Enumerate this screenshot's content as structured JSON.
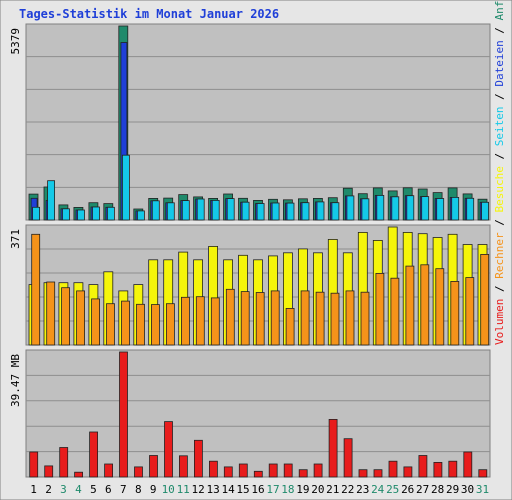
{
  "chart_data": {
    "type": "bar",
    "title": "Tages-Statistik im Monat Januar 2026",
    "colors": {
      "anfragen": "#1f8a6b",
      "dateien": "#1f3fd8",
      "seiten": "#14c9e8",
      "besuche": "#f5f50a",
      "rechner": "#f5931a",
      "volumen": "#e81c1c",
      "title": "#1f3fd8",
      "plot_bg": "#c0c0c0",
      "frame_bg": "#e6e6e6",
      "weekend": "#1f8a6b",
      "weekday": "#000000"
    },
    "categories": [
      "1",
      "2",
      "3",
      "4",
      "5",
      "6",
      "7",
      "8",
      "9",
      "10",
      "11",
      "12",
      "13",
      "14",
      "15",
      "16",
      "17",
      "18",
      "19",
      "20",
      "21",
      "22",
      "23",
      "24",
      "25",
      "26",
      "27",
      "28",
      "29",
      "30",
      "31"
    ],
    "weekend_days": [
      "3",
      "4",
      "10",
      "11",
      "17",
      "18",
      "24",
      "25",
      "31"
    ],
    "panels": [
      {
        "id": "hits",
        "ymax": 5379,
        "ymax_label": "5379",
        "series": [
          {
            "name": "Anfragen",
            "values": [
              719,
              915,
              420,
              350,
              481,
              455,
              5379,
              305,
              598,
              607,
              705,
              640,
              600,
              720,
              602,
              543,
              575,
              560,
              588,
              598,
              617,
              882,
              730,
              890,
              807,
              893,
              860,
              759,
              890,
              725,
              577
            ]
          },
          {
            "name": "Dateien",
            "values": [
              601,
              540,
              311,
              276,
              361,
              351,
              4922,
              253,
              531,
              477,
              538,
              582,
              543,
              594,
              493,
              457,
              471,
              468,
              480,
              502,
              481,
              669,
              589,
              681,
              642,
              675,
              648,
              596,
              628,
              602,
              491
            ]
          },
          {
            "name": "Seiten",
            "values": [
              352,
              1090,
              311,
              276,
              361,
              351,
              1797,
              253,
              531,
              477,
              538,
              582,
              543,
              594,
              493,
              457,
              471,
              468,
              480,
              502,
              481,
              669,
              589,
              681,
              642,
              675,
              648,
              596,
              628,
              602,
              491
            ]
          }
        ]
      },
      {
        "id": "visits",
        "ymax": 371,
        "ymax_label": "371",
        "series": [
          {
            "name": "Besuche",
            "values": [
              190,
              196,
              196,
              196,
              190,
              230,
              170,
              190,
              268,
              268,
              292,
              268,
              310,
              268,
              282,
              268,
              280,
              290,
              302,
              290,
              332,
              290,
              354,
              329,
              371,
              354,
              350,
              338,
              348,
              316,
              316
            ]
          },
          {
            "name": "Rechner",
            "values": [
              348,
              198,
              180,
              170,
              145,
              130,
              138,
              128,
              127,
              130,
              150,
              152,
              148,
              175,
              168,
              165,
              170,
              115,
              170,
              166,
              163,
              170,
              166,
              225,
              210,
              248,
              252,
              240,
              200,
              212,
              285
            ]
          }
        ]
      },
      {
        "id": "volume",
        "ymax": 39.47,
        "ymax_label": "39.47 MB",
        "series": [
          {
            "name": "Volumen",
            "values": [
              7.9,
              3.5,
              9.3,
              1.5,
              14.2,
              4.1,
              39.47,
              3.2,
              6.8,
              17.5,
              6.7,
              11.6,
              5.0,
              3.2,
              4.1,
              1.8,
              4.1,
              4.1,
              2.3,
              4.1,
              18.2,
              12.1,
              2.3,
              2.3,
              5.0,
              3.2,
              6.8,
              4.6,
              5.0,
              7.9,
              2.3
            ]
          }
        ]
      }
    ],
    "right_labels": [
      {
        "text": "Anfragen",
        "key": "anfragen"
      },
      {
        "text": "Dateien",
        "key": "dateien"
      },
      {
        "text": "Seiten",
        "key": "seiten"
      },
      {
        "text": "Besuche",
        "key": "besuche"
      },
      {
        "text": "Rechner",
        "key": "rechner"
      },
      {
        "text": "Volumen",
        "key": "volumen"
      }
    ],
    "separator": "/",
    "grid": true
  }
}
